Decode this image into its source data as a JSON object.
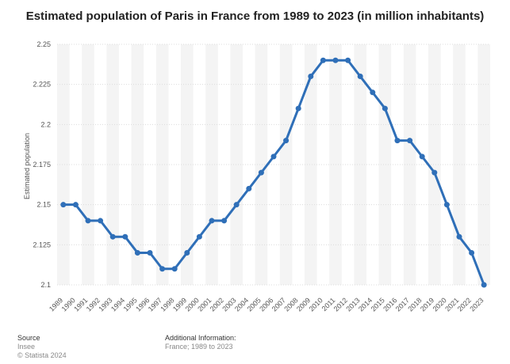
{
  "chart_data": {
    "type": "line",
    "title": "Estimated population of Paris in France from 1989 to 2023 (in million inhabitants)",
    "xlabel": "",
    "ylabel": "Estimated population",
    "ylim": [
      2.1,
      2.25
    ],
    "yticks": [
      "2.1",
      "2.125",
      "2.15",
      "2.175",
      "2.2",
      "2.225",
      "2.25"
    ],
    "grid": true,
    "categories": [
      "1989",
      "1990",
      "1991",
      "1992",
      "1993",
      "1994",
      "1995",
      "1996",
      "1997",
      "1998",
      "1999",
      "2000",
      "2001",
      "2002",
      "2003",
      "2004",
      "2005",
      "2006",
      "2007",
      "2008",
      "2009",
      "2010",
      "2011",
      "2012",
      "2013",
      "2014",
      "2015",
      "2016",
      "2017",
      "2018",
      "2019",
      "2020",
      "2021",
      "2022",
      "2023"
    ],
    "series": [
      {
        "name": "Estimated population",
        "color": "#2f6fb8",
        "values": [
          2.15,
          2.15,
          2.14,
          2.14,
          2.13,
          2.13,
          2.12,
          2.12,
          2.11,
          2.11,
          2.12,
          2.13,
          2.14,
          2.14,
          2.15,
          2.16,
          2.17,
          2.18,
          2.19,
          2.21,
          2.23,
          2.24,
          2.24,
          2.24,
          2.23,
          2.22,
          2.21,
          2.19,
          2.19,
          2.18,
          2.17,
          2.15,
          2.13,
          2.12,
          2.1
        ]
      }
    ]
  },
  "footer": {
    "source_heading": "Source",
    "source_name": "Insee",
    "copyright": "© Statista 2024",
    "info_heading": "Additional Information:",
    "info_text": "France; 1989 to 2023"
  }
}
